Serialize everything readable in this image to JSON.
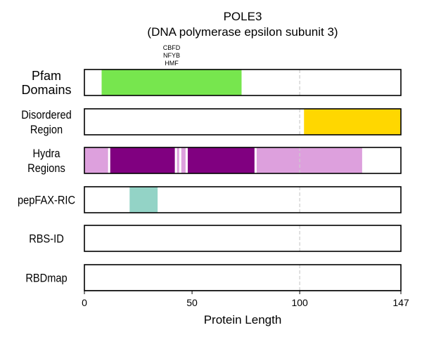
{
  "chart_data": {
    "type": "bar",
    "title": "POLE3",
    "subtitle": "(DNA polymerase epsilon subunit 3)",
    "xlabel": "Protein Length",
    "xlim": [
      0,
      147
    ],
    "xticks": [
      0,
      50,
      100,
      147
    ],
    "reference_line": 100,
    "rows": [
      {
        "label_lines": [
          "Pfam",
          "Domains"
        ],
        "segments": [
          {
            "start": 8,
            "end": 73,
            "color": "#77e64e"
          }
        ],
        "annotation_lines": [
          "CBFD",
          "NFYB",
          "HMF"
        ]
      },
      {
        "label_lines": [
          "Disordered",
          "Region"
        ],
        "segments": [
          {
            "start": 102,
            "end": 147,
            "color": "#ffd700"
          }
        ]
      },
      {
        "label_lines": [
          "Hydra",
          "Regions"
        ],
        "segments": [
          {
            "start": 0,
            "end": 11,
            "color": "#dda0dd"
          },
          {
            "start": 12,
            "end": 42,
            "color": "#800080"
          },
          {
            "start": 43,
            "end": 44,
            "color": "#dda0dd"
          },
          {
            "start": 45,
            "end": 47,
            "color": "#dda0dd"
          },
          {
            "start": 48,
            "end": 79,
            "color": "#800080"
          },
          {
            "start": 80,
            "end": 129,
            "color": "#dda0dd"
          }
        ]
      },
      {
        "label_lines": [
          "pepFAX-RIC"
        ],
        "segments": [
          {
            "start": 21,
            "end": 34,
            "color": "#93d3c6"
          }
        ]
      },
      {
        "label_lines": [
          "RBS-ID"
        ],
        "segments": []
      },
      {
        "label_lines": [
          "RBDmap"
        ],
        "segments": []
      }
    ]
  }
}
